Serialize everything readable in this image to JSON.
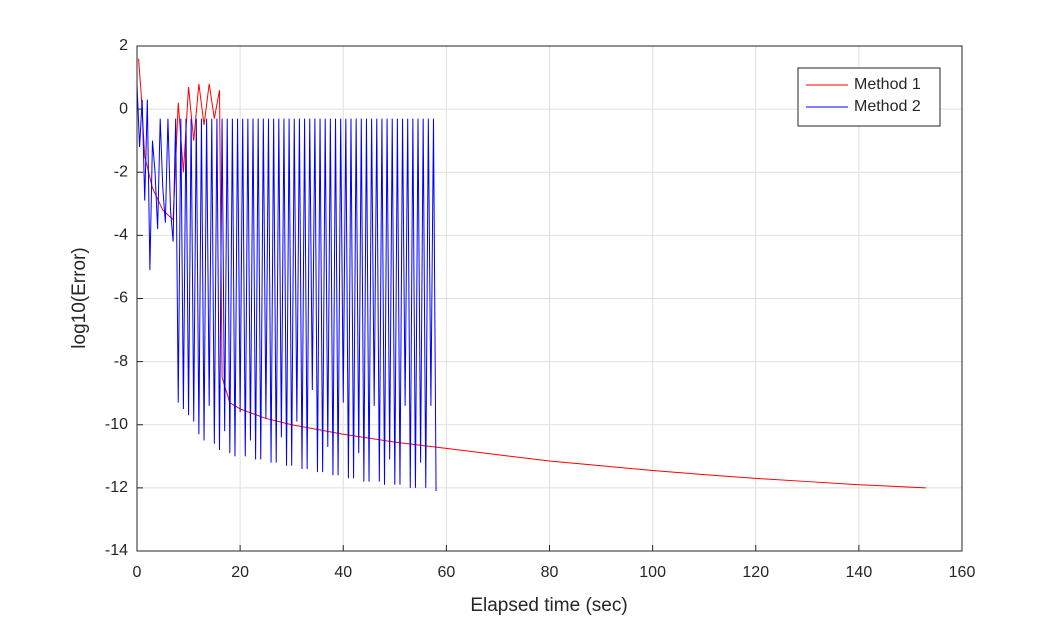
{
  "chart_data": {
    "type": "line",
    "xlabel": "Elapsed time (sec)",
    "ylabel": "log10(Error)",
    "xlim": [
      0,
      160
    ],
    "ylim": [
      -14,
      2
    ],
    "xticks": [
      0,
      20,
      40,
      60,
      80,
      100,
      120,
      140,
      160
    ],
    "yticks": [
      -14,
      -12,
      -10,
      -8,
      -6,
      -4,
      -2,
      0,
      2
    ],
    "grid": true,
    "legend": "northeast",
    "series": [
      {
        "name": "Method 1",
        "color": "#ff0000",
        "x": [
          0.3,
          0.8,
          1.5,
          3,
          5,
          7,
          8,
          9,
          10,
          11,
          12,
          13,
          14,
          15,
          16,
          16.5,
          18,
          20,
          25,
          30,
          40,
          50,
          60,
          70,
          80,
          90,
          100,
          110,
          120,
          130,
          140,
          153
        ],
        "values": [
          1.6,
          0.5,
          -1.5,
          -2.5,
          -3.2,
          -3.5,
          0.2,
          -2,
          0.7,
          -1,
          0.8,
          -0.5,
          0.8,
          -0.3,
          0.6,
          -8.5,
          -9.3,
          -9.5,
          -9.8,
          -10,
          -10.3,
          -10.55,
          -10.75,
          -10.95,
          -11.15,
          -11.3,
          -11.45,
          -11.58,
          -11.7,
          -11.8,
          -11.9,
          -12
        ]
      },
      {
        "name": "Method 2",
        "color": "#0000ff",
        "x": [
          0,
          0.5,
          1,
          1.5,
          2,
          2.5,
          3,
          3.5,
          4,
          4.5,
          5,
          5.5,
          6,
          6.5,
          7,
          7.5,
          8,
          8.5,
          9,
          9.5,
          10,
          10.5,
          11,
          11.5,
          12,
          12.5,
          13,
          13.5,
          14,
          14.5,
          15,
          15.5,
          16,
          16.5,
          17,
          17.5,
          18,
          18.5,
          19,
          19.5,
          20,
          20.5,
          21,
          21.5,
          22,
          22.5,
          23,
          23.5,
          24,
          24.5,
          25,
          25.5,
          26,
          26.5,
          27,
          27.5,
          28,
          28.5,
          29,
          29.5,
          30,
          30.5,
          31,
          31.5,
          32,
          32.5,
          33,
          33.5,
          34,
          34.5,
          35,
          35.5,
          36,
          36.5,
          37,
          37.5,
          38,
          38.5,
          39,
          39.5,
          40,
          40.5,
          41,
          41.5,
          42,
          42.5,
          43,
          43.5,
          44,
          44.5,
          45,
          45.5,
          46,
          46.5,
          47,
          47.5,
          48,
          48.5,
          49,
          49.5,
          50,
          50.5,
          51,
          51.5,
          52,
          52.5,
          53,
          53.5,
          54,
          54.5,
          55,
          55.5,
          56,
          56.5,
          57,
          57.5,
          58
        ],
        "values": [
          0.8,
          -1.2,
          0.3,
          -2.9,
          0.3,
          -5.1,
          -1,
          -2,
          -3.8,
          -0.3,
          -2.5,
          -3.6,
          -0.3,
          -3.2,
          -4.2,
          -0.3,
          -9.3,
          -0.3,
          -9.5,
          -0.3,
          -9.7,
          -0.3,
          -9.9,
          -0.3,
          -10.3,
          -0.3,
          -10.5,
          -0.3,
          -9.4,
          -0.3,
          -10.6,
          -0.3,
          -10.8,
          -0.3,
          -10.2,
          -0.3,
          -10.9,
          -0.3,
          -11,
          -0.3,
          -9.6,
          -0.3,
          -11,
          -0.3,
          -10.5,
          -0.3,
          -11.1,
          -0.3,
          -11.1,
          -0.3,
          -9.8,
          -0.3,
          -11.2,
          -0.3,
          -11.2,
          -0.3,
          -10.4,
          -0.3,
          -11.3,
          -0.3,
          -11.3,
          -0.3,
          -9.9,
          -0.3,
          -11.4,
          -0.3,
          -11.4,
          -0.3,
          -8.9,
          -0.3,
          -11.5,
          -0.3,
          -11.5,
          -0.3,
          -10.7,
          -0.3,
          -11.6,
          -0.3,
          -11.6,
          -0.3,
          -9.3,
          -0.3,
          -11.7,
          -0.3,
          -11.7,
          -0.3,
          -10.9,
          -0.3,
          -11.8,
          -0.3,
          -11.8,
          -0.3,
          -9.4,
          -0.3,
          -11.8,
          -0.3,
          -11.9,
          -0.3,
          -11.1,
          -0.3,
          -11.9,
          -0.3,
          -11.9,
          -0.3,
          -9.4,
          -0.3,
          -12,
          -0.3,
          -12,
          -0.3,
          -11.2,
          -0.3,
          -12,
          -0.3,
          -9.4,
          -0.3,
          -12.1
        ]
      }
    ]
  }
}
